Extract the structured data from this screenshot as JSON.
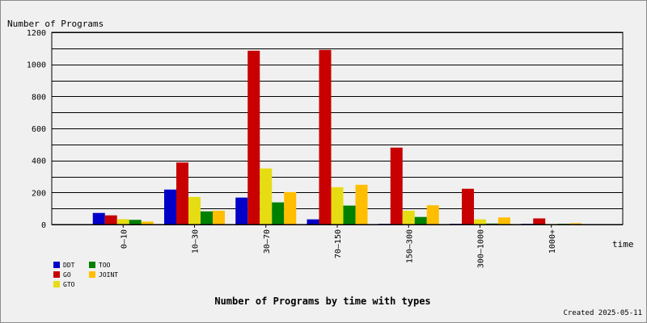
{
  "chart_data": {
    "type": "bar",
    "title": "Number of Programs by time with types",
    "ylabel": "Number of Programs",
    "xlabel": "time",
    "ylim": [
      0,
      1200
    ],
    "yticks": [
      0,
      200,
      400,
      600,
      800,
      1000,
      1200
    ],
    "grid": true,
    "legend_position": "bottom-left",
    "categories": [
      "0–10",
      "10–30",
      "30–70",
      "70–150",
      "150–300",
      "300–1000",
      "1000+"
    ],
    "series": [
      {
        "name": "DDT",
        "color": "#0000c8",
        "values": [
          72,
          218,
          168,
          32,
          4,
          4,
          4
        ]
      },
      {
        "name": "GO",
        "color": "#c80000",
        "values": [
          57,
          387,
          1085,
          1090,
          480,
          223,
          38
        ]
      },
      {
        "name": "GTO",
        "color": "#e6dc14",
        "values": [
          33,
          172,
          350,
          233,
          86,
          32,
          3
        ]
      },
      {
        "name": "TOO",
        "color": "#008000",
        "values": [
          29,
          82,
          138,
          118,
          47,
          6,
          4
        ]
      },
      {
        "name": "JOINT",
        "color": "#ffbe00",
        "values": [
          18,
          86,
          202,
          248,
          120,
          44,
          8
        ]
      }
    ]
  },
  "footer": {
    "created": "Created 2025-05-11"
  }
}
